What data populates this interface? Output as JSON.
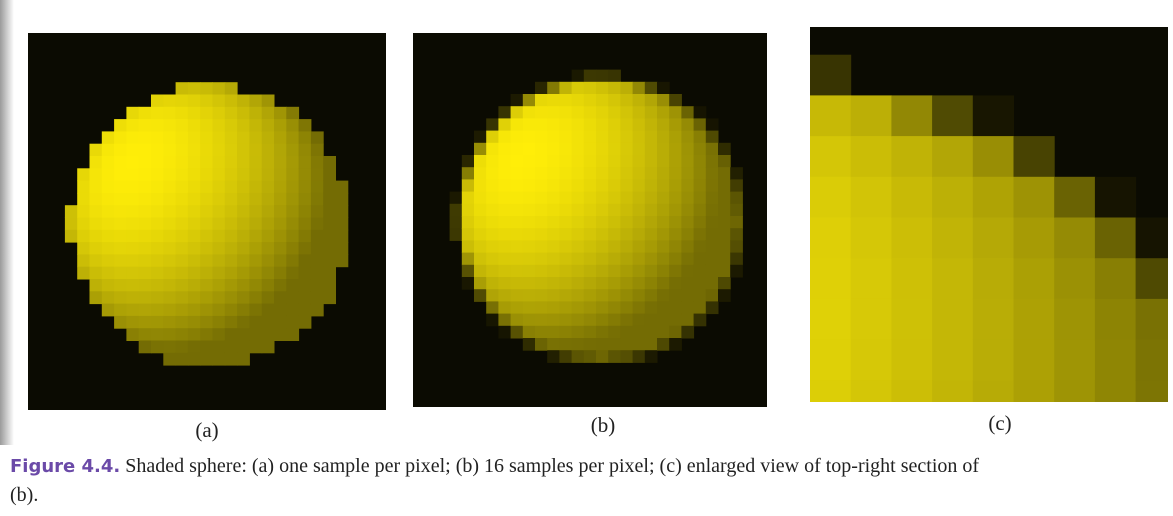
{
  "figure": {
    "panels": [
      {
        "label": "(a)"
      },
      {
        "label": "(b)"
      },
      {
        "label": "(c)"
      }
    ],
    "caption": {
      "number": "Figure 4.4.",
      "text": "Shaded sphere: (a) one sample per pixel; (b) 16 samples per pixel; (c) enlarged view of top-right section of (b)."
    }
  }
}
